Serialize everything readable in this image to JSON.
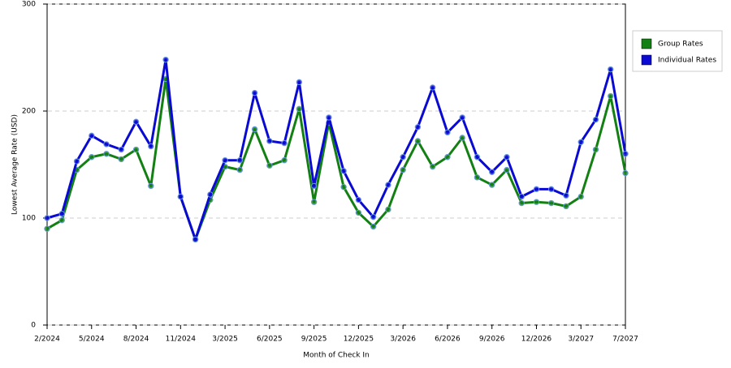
{
  "chart_data": {
    "type": "line",
    "x_label": "Month of Check In",
    "y_label": "Lowest Average Rate (USD)",
    "categories": [
      "2/2024",
      null,
      null,
      "5/2024",
      null,
      null,
      "8/2024",
      null,
      null,
      "11/2024",
      null,
      null,
      "3/2025",
      null,
      null,
      "6/2025",
      null,
      null,
      "9/2025",
      null,
      null,
      "12/2025",
      null,
      null,
      "3/2026",
      null,
      null,
      "6/2026",
      null,
      null,
      "9/2026",
      null,
      null,
      "12/2026",
      null,
      null,
      "3/2027",
      null,
      null,
      "7/2027"
    ],
    "series": [
      {
        "name": "Group Rates",
        "color": "#138013",
        "values": [
          90,
          98,
          145,
          157,
          160,
          155,
          164,
          130,
          230,
          120,
          80,
          117,
          148,
          145,
          183,
          149,
          154,
          202,
          115,
          189,
          129,
          105,
          92,
          108,
          145,
          172,
          148,
          157,
          175,
          138,
          131,
          145,
          114,
          115,
          114,
          111,
          120,
          164,
          214,
          142
        ]
      },
      {
        "name": "Individual Rates",
        "color": "#0a0ad2",
        "values": [
          100,
          104,
          153,
          177,
          169,
          164,
          190,
          167,
          248,
          120,
          80,
          122,
          154,
          154,
          217,
          172,
          170,
          227,
          130,
          194,
          144,
          117,
          101,
          131,
          157,
          185,
          222,
          180,
          194,
          157,
          143,
          157,
          120,
          127,
          127,
          121,
          171,
          192,
          239,
          160
        ]
      }
    ],
    "ylim": [
      0,
      300
    ],
    "yticks": [
      0,
      100,
      200,
      300
    ],
    "grid": true,
    "legend": "right"
  }
}
